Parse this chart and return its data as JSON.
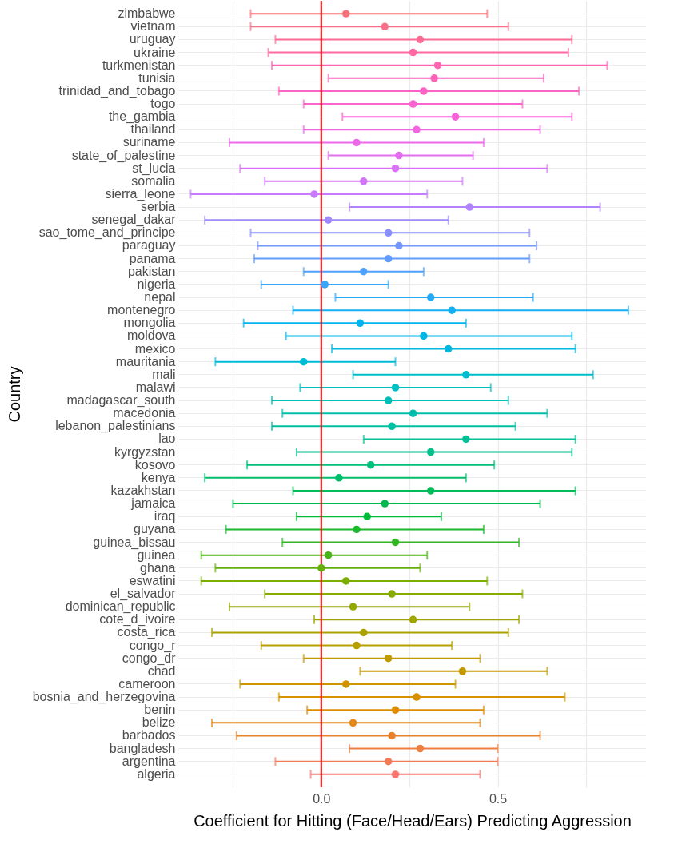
{
  "chart_data": {
    "type": "scatter",
    "orientation": "horizontal",
    "xlabel": "Coefficient for Hitting (Face/Head/Ears) Predicting Aggression",
    "ylabel": "Country",
    "marker": "circle",
    "grid": true,
    "categories": [
      "zimbabwe",
      "vietnam",
      "uruguay",
      "ukraine",
      "turkmenistan",
      "tunisia",
      "trinidad_and_tobago",
      "togo",
      "the_gambia",
      "thailand",
      "suriname",
      "state_of_palestine",
      "st_lucia",
      "somalia",
      "sierra_leone",
      "serbia",
      "senegal_dakar",
      "sao_tome_and_principe",
      "paraguay",
      "panama",
      "pakistan",
      "nigeria",
      "nepal",
      "montenegro",
      "mongolia",
      "moldova",
      "mexico",
      "mauritania",
      "mali",
      "malawi",
      "madagascar_south",
      "macedonia",
      "lebanon_palestinians",
      "lao",
      "kyrgyzstan",
      "kosovo",
      "kenya",
      "kazakhstan",
      "jamaica",
      "iraq",
      "guyana",
      "guinea_bissau",
      "guinea",
      "ghana",
      "eswatini",
      "el_salvador",
      "dominican_republic",
      "cote_d_ivoire",
      "costa_rica",
      "congo_r",
      "congo_dr",
      "chad",
      "cameroon",
      "bosnia_and_herzegovina",
      "benin",
      "belize",
      "barbados",
      "bangladesh",
      "argentina",
      "algeria"
    ],
    "values": [
      0.07,
      0.18,
      0.28,
      0.26,
      0.33,
      0.32,
      0.29,
      0.26,
      0.38,
      0.27,
      0.1,
      0.22,
      0.21,
      0.12,
      -0.02,
      0.42,
      0.02,
      0.19,
      0.22,
      0.19,
      0.12,
      0.01,
      0.31,
      0.37,
      0.11,
      0.29,
      0.36,
      -0.05,
      0.41,
      0.21,
      0.19,
      0.26,
      0.2,
      0.41,
      0.31,
      0.14,
      0.05,
      0.31,
      0.18,
      0.13,
      0.1,
      0.21,
      0.02,
      0.0,
      0.07,
      0.2,
      0.09,
      0.26,
      0.12,
      0.1,
      0.19,
      0.4,
      0.07,
      0.27,
      0.21,
      0.09,
      0.2,
      0.28,
      0.19,
      0.21
    ],
    "errors": [
      [
        -0.2,
        0.47
      ],
      [
        -0.2,
        0.53
      ],
      [
        -0.13,
        0.71
      ],
      [
        -0.15,
        0.7
      ],
      [
        -0.14,
        0.81
      ],
      [
        0.02,
        0.63
      ],
      [
        -0.12,
        0.73
      ],
      [
        -0.05,
        0.57
      ],
      [
        0.06,
        0.71
      ],
      [
        -0.05,
        0.62
      ],
      [
        -0.26,
        0.46
      ],
      [
        0.02,
        0.43
      ],
      [
        -0.23,
        0.64
      ],
      [
        -0.16,
        0.4
      ],
      [
        -0.37,
        0.3
      ],
      [
        0.08,
        0.79
      ],
      [
        -0.33,
        0.36
      ],
      [
        -0.2,
        0.59
      ],
      [
        -0.18,
        0.61
      ],
      [
        -0.19,
        0.59
      ],
      [
        -0.05,
        0.29
      ],
      [
        -0.17,
        0.19
      ],
      [
        0.04,
        0.6
      ],
      [
        -0.08,
        0.87
      ],
      [
        -0.22,
        0.41
      ],
      [
        -0.1,
        0.71
      ],
      [
        0.03,
        0.72
      ],
      [
        -0.3,
        0.21
      ],
      [
        0.09,
        0.77
      ],
      [
        -0.06,
        0.48
      ],
      [
        -0.14,
        0.53
      ],
      [
        -0.11,
        0.64
      ],
      [
        -0.14,
        0.55
      ],
      [
        0.12,
        0.72
      ],
      [
        -0.07,
        0.71
      ],
      [
        -0.21,
        0.49
      ],
      [
        -0.33,
        0.41
      ],
      [
        -0.08,
        0.72
      ],
      [
        -0.25,
        0.62
      ],
      [
        -0.07,
        0.34
      ],
      [
        -0.27,
        0.46
      ],
      [
        -0.11,
        0.56
      ],
      [
        -0.34,
        0.3
      ],
      [
        -0.3,
        0.28
      ],
      [
        -0.34,
        0.47
      ],
      [
        -0.16,
        0.57
      ],
      [
        -0.26,
        0.42
      ],
      [
        -0.02,
        0.56
      ],
      [
        -0.31,
        0.53
      ],
      [
        -0.17,
        0.37
      ],
      [
        -0.05,
        0.45
      ],
      [
        0.11,
        0.64
      ],
      [
        -0.23,
        0.38
      ],
      [
        -0.12,
        0.69
      ],
      [
        -0.04,
        0.46
      ],
      [
        -0.31,
        0.45
      ],
      [
        -0.24,
        0.62
      ],
      [
        0.08,
        0.5
      ],
      [
        -0.13,
        0.5
      ],
      [
        -0.03,
        0.45
      ]
    ],
    "colors": [
      "#F9727A",
      "#FB6F88",
      "#FC6B95",
      "#FE68A3",
      "#FF64B0",
      "#FD64BA",
      "#FB64C4",
      "#F964CF",
      "#F764D9",
      "#F564E3",
      "#EC69E9",
      "#E36EEE",
      "#D972F4",
      "#D077F9",
      "#C77CFF",
      "#B382FF",
      "#9E89FF",
      "#8A8FFF",
      "#7596FF",
      "#619CFF",
      "#4EA1FC",
      "#3AA6F9",
      "#27AAF6",
      "#13AFF3",
      "#00B4F0",
      "#00B6E7",
      "#00B8DE",
      "#00BBD6",
      "#00BDCD",
      "#00BFC4",
      "#00BFB9",
      "#00BFAD",
      "#00C0A2",
      "#00C096",
      "#00C08B",
      "#00BF7A",
      "#00BE6A",
      "#00BC59",
      "#00BB49",
      "#00BA38",
      "#19B82D",
      "#32B522",
      "#4AB316",
      "#63B00B",
      "#7CAE00",
      "#88AB00",
      "#94A800",
      "#9FA500",
      "#ABA200",
      "#B79F00",
      "#BF9B00",
      "#C79700",
      "#CE9400",
      "#D69000",
      "#DE8C00",
      "#E38816",
      "#E8832C",
      "#EE7F41",
      "#F37A57",
      "#F8766D"
    ],
    "xlim": [
      -0.405,
      0.92
    ],
    "xticks": [
      {
        "value": -0.25,
        "label": null
      },
      {
        "value": 0,
        "label": "0.0"
      },
      {
        "value": 0.25,
        "label": null
      },
      {
        "value": 0.5,
        "label": "0.5"
      },
      {
        "value": 0.75,
        "label": null
      }
    ],
    "ref_lines": [
      {
        "axis": "x",
        "value": 0,
        "color": "#ff0000"
      }
    ]
  }
}
